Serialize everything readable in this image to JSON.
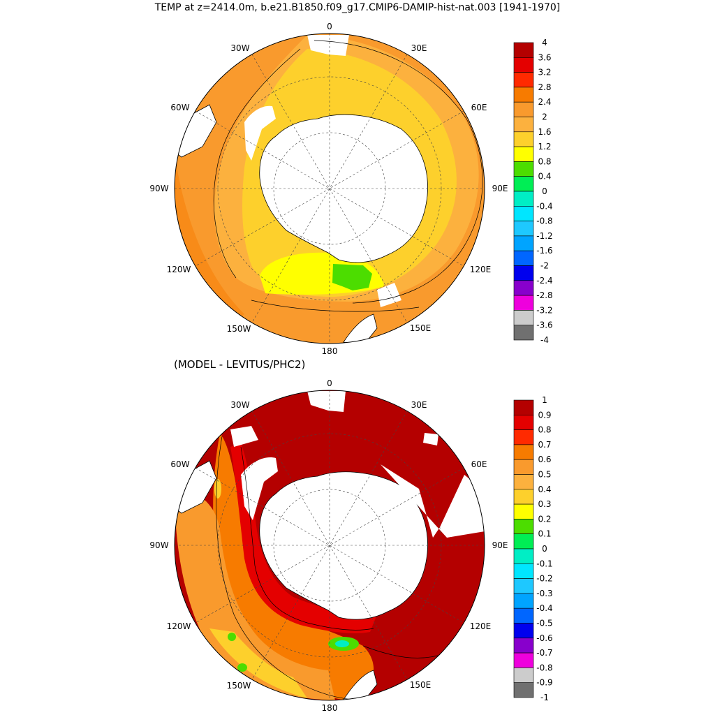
{
  "title": "TEMP at z=2414.0m, b.e21.B1850.f09_g17.CMIP6-DAMIP-hist-nat.003 [1941-1970]",
  "subtitle": "(MODEL - LEVITUS/PHC2)",
  "longitude_labels": [
    "0",
    "30E",
    "60E",
    "90E",
    "120E",
    "150E",
    "180",
    "150W",
    "120W",
    "90W",
    "60W",
    "30W"
  ],
  "colorbar_top": {
    "levels": [
      "4",
      "3.6",
      "3.2",
      "2.8",
      "2.4",
      "2",
      "1.6",
      "1.2",
      "0.8",
      "0.4",
      "0",
      "-0.4",
      "-0.8",
      "-1.2",
      "-1.6",
      "-2",
      "-2.4",
      "-2.8",
      "-3.2",
      "-3.6",
      "-4"
    ],
    "colors": [
      "#b40000",
      "#e40000",
      "#ff2a00",
      "#f77b00",
      "#f99a2d",
      "#fcb13e",
      "#fdd02c",
      "#ffff00",
      "#4cdd00",
      "#00ee55",
      "#00eec5",
      "#00e6ff",
      "#1ec8ff",
      "#00a4ff",
      "#0066ff",
      "#0000ee",
      "#8800cc",
      "#ee00dd",
      "#cccccc",
      "#707070"
    ]
  },
  "colorbar_bottom": {
    "levels": [
      "1",
      "0.9",
      "0.8",
      "0.7",
      "0.6",
      "0.5",
      "0.4",
      "0.3",
      "0.2",
      "0.1",
      "0",
      "-0.1",
      "-0.2",
      "-0.3",
      "-0.4",
      "-0.5",
      "-0.6",
      "-0.7",
      "-0.8",
      "-0.9",
      "-1"
    ],
    "colors": [
      "#b40000",
      "#e40000",
      "#ff2a00",
      "#f77b00",
      "#f99a2d",
      "#fcb13e",
      "#fdd02c",
      "#ffff00",
      "#4cdd00",
      "#00ee55",
      "#00eec5",
      "#00e6ff",
      "#1ec8ff",
      "#00a4ff",
      "#0066ff",
      "#0000ee",
      "#8800cc",
      "#ee00dd",
      "#cccccc",
      "#707070"
    ]
  }
}
